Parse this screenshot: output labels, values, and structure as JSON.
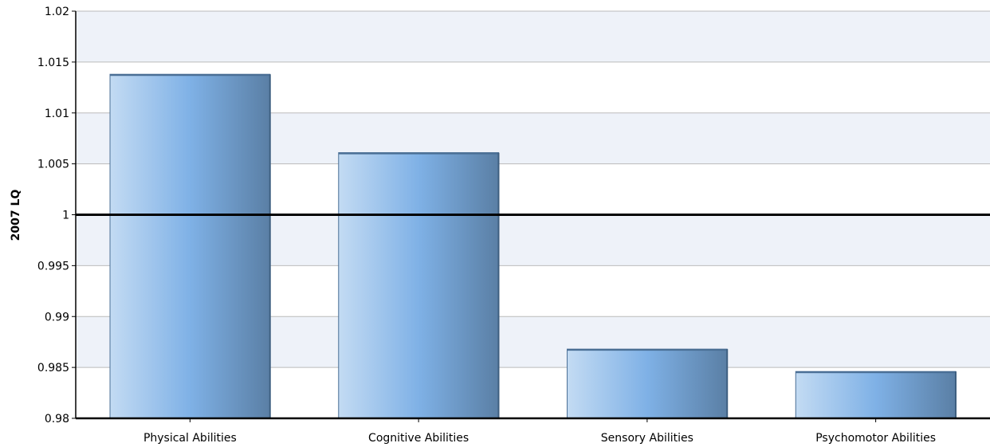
{
  "chart_data": {
    "type": "bar",
    "title": "",
    "xlabel": "",
    "ylabel": "2007 LQ",
    "categories": [
      "Physical Abilities",
      "Cognitive Abilities",
      "Sensory Abilities",
      "Psychomotor Abilities"
    ],
    "values": [
      1.0138,
      1.0061,
      0.9868,
      0.9846
    ],
    "ylim": [
      0.98,
      1.02
    ],
    "yticks": [
      0.98,
      0.985,
      0.99,
      0.995,
      1,
      1.005,
      1.01,
      1.015,
      1.02
    ],
    "ytick_labels": [
      "0.98",
      "0.985",
      "0.99",
      "0.995",
      "1",
      "1.005",
      "1.01",
      "1.015",
      "1.02"
    ],
    "reference_line": 1,
    "grid": true,
    "legend": "none",
    "colors": {
      "bar_light": "#c3dbf3",
      "bar_mid": "#7fb1e6",
      "bar_dark": "#5a7fa5",
      "bar_edge": "#4a6f95",
      "band": "#eef2f9",
      "grid": "#bbbbbb",
      "axis": "#000000"
    }
  }
}
